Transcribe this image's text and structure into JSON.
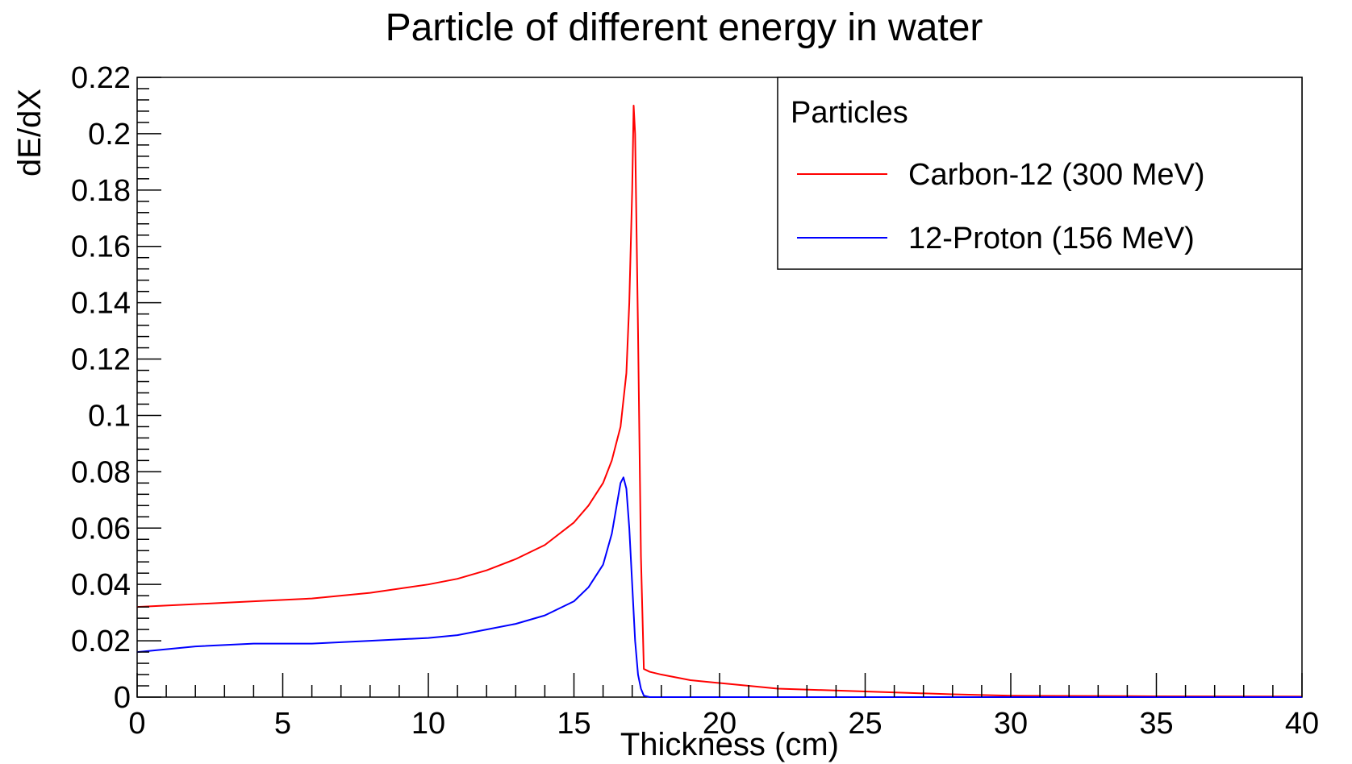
{
  "chart_data": {
    "type": "line",
    "title": "Particle of different energy in water",
    "xlabel": "Thickness (cm)",
    "ylabel": "dE/dX",
    "xlim": [
      0,
      40
    ],
    "ylim": [
      0,
      0.22
    ],
    "x_ticks": [
      "0",
      "5",
      "10",
      "15",
      "20",
      "25",
      "30",
      "35",
      "40"
    ],
    "y_ticks": [
      "0",
      "0.02",
      "0.04",
      "0.06",
      "0.08",
      "0.1",
      "0.12",
      "0.14",
      "0.16",
      "0.18",
      "0.2",
      "0.22"
    ],
    "grid": false,
    "legend": {
      "title": "Particles",
      "placement": "top-right"
    },
    "series": [
      {
        "name": "Carbon-12 (300 MeV)",
        "color": "#ff0000",
        "x": [
          0,
          2,
          4,
          6,
          8,
          10,
          11,
          12,
          13,
          14,
          15,
          15.5,
          16,
          16.3,
          16.6,
          16.8,
          16.9,
          17.0,
          17.05,
          17.1,
          17.2,
          17.3,
          17.4,
          17.6,
          18,
          19,
          20,
          22,
          25,
          28,
          30,
          35,
          40
        ],
        "y": [
          0.032,
          0.033,
          0.034,
          0.035,
          0.037,
          0.04,
          0.042,
          0.045,
          0.049,
          0.054,
          0.062,
          0.068,
          0.076,
          0.084,
          0.096,
          0.115,
          0.14,
          0.18,
          0.21,
          0.2,
          0.13,
          0.05,
          0.01,
          0.009,
          0.008,
          0.006,
          0.005,
          0.003,
          0.002,
          0.001,
          0.0005,
          0.0003,
          0.0002
        ]
      },
      {
        "name": "12-Proton (156 MeV)",
        "color": "#0000ff",
        "x": [
          0,
          2,
          4,
          6,
          8,
          10,
          11,
          12,
          13,
          14,
          15,
          15.5,
          16,
          16.3,
          16.5,
          16.6,
          16.7,
          16.8,
          16.9,
          17.0,
          17.1,
          17.2,
          17.3,
          17.4,
          17.6,
          18,
          20,
          25,
          30,
          35,
          40
        ],
        "y": [
          0.016,
          0.018,
          0.019,
          0.019,
          0.02,
          0.021,
          0.022,
          0.024,
          0.026,
          0.029,
          0.034,
          0.039,
          0.047,
          0.058,
          0.07,
          0.076,
          0.078,
          0.074,
          0.06,
          0.04,
          0.02,
          0.008,
          0.003,
          0.0005,
          0,
          0,
          0,
          0,
          0,
          0,
          0
        ]
      }
    ]
  }
}
